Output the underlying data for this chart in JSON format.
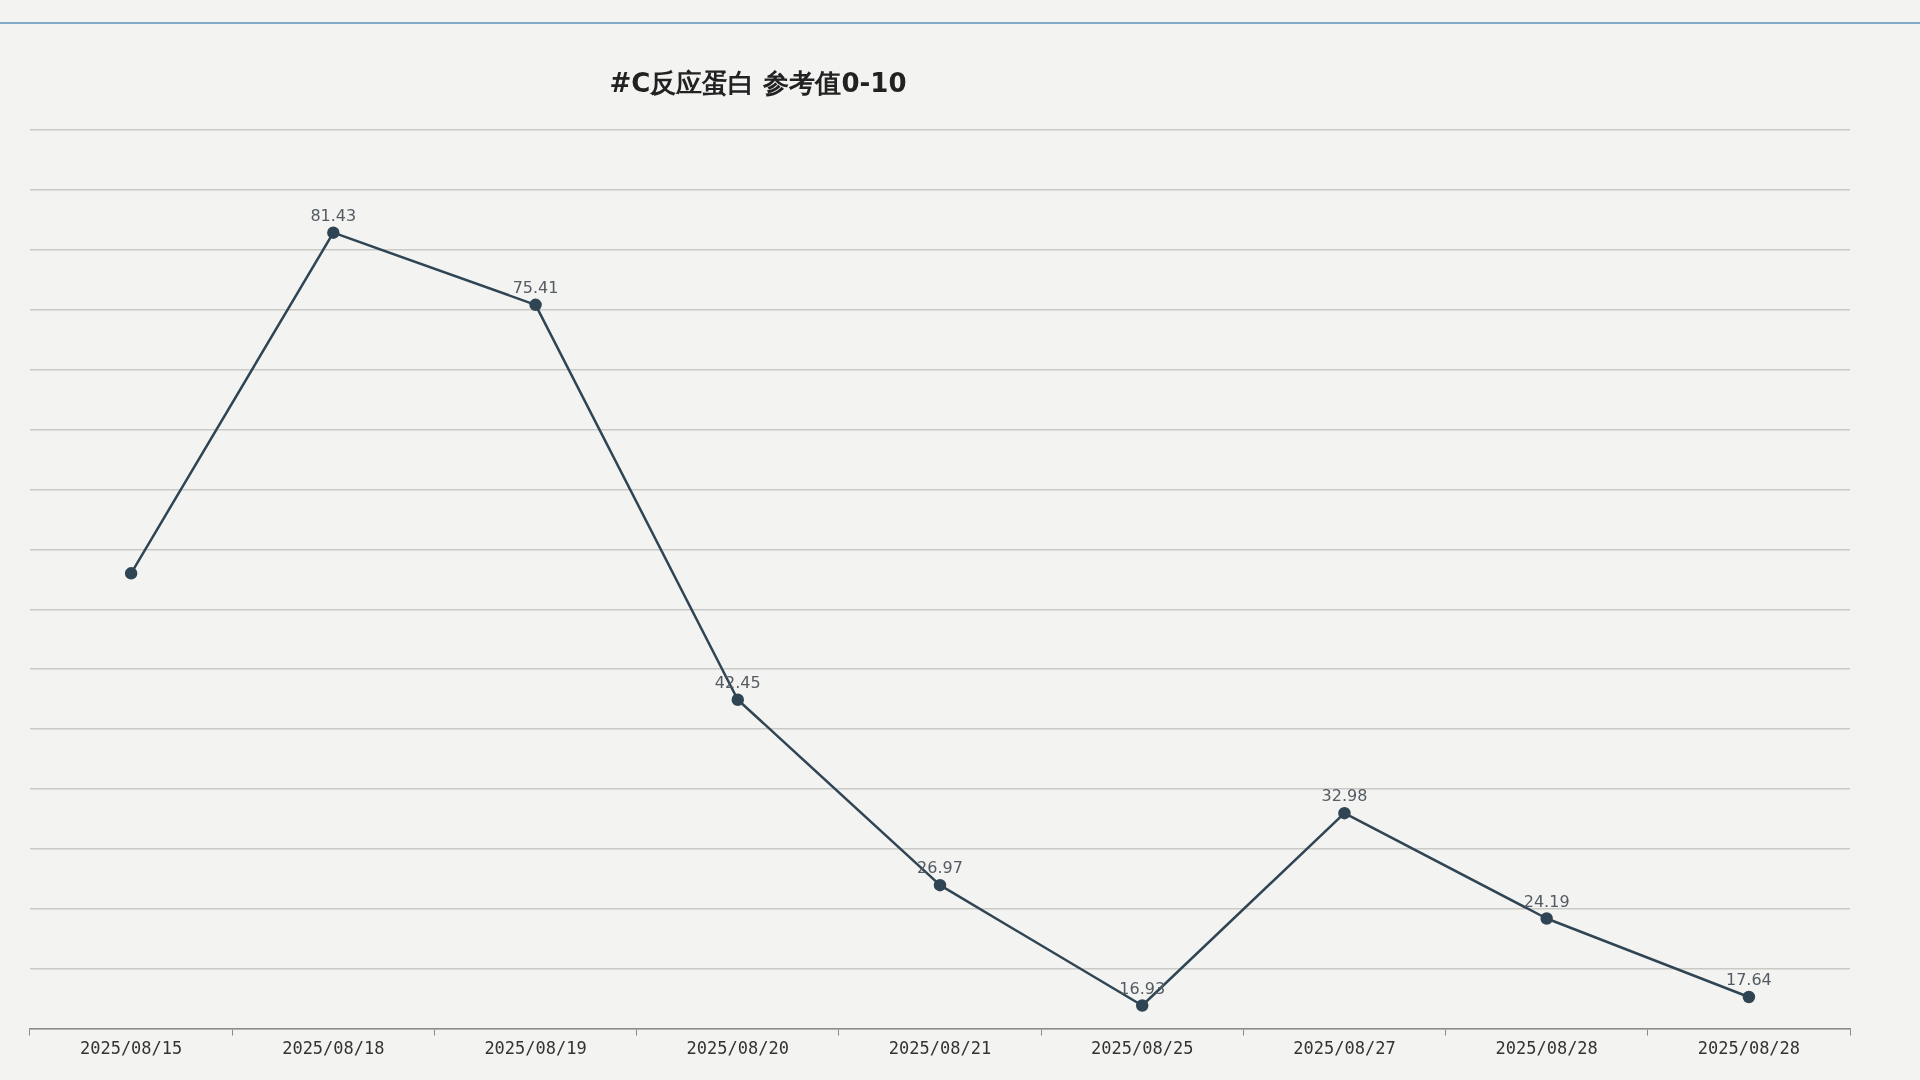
{
  "chart_data": {
    "type": "line",
    "title": "#C反应蛋白 参考值0-10",
    "categories": [
      "2025/08/15",
      "2025/08/18",
      "2025/08/19",
      "2025/08/20",
      "2025/08/21",
      "2025/08/25",
      "2025/08/27",
      "2025/08/28",
      "2025/08/28"
    ],
    "values": [
      53,
      81.43,
      75.41,
      42.45,
      26.97,
      16.93,
      32.98,
      24.19,
      17.64
    ],
    "value_labels": [
      null,
      "81.43",
      "75.41",
      "42.45",
      "26.97",
      "16.93",
      "32.98",
      "24.19",
      "17.64"
    ],
    "color": "#2f4554",
    "ylim": [
      15,
      90
    ],
    "yticks": [
      {
        "value": 15,
        "label": null
      },
      {
        "value": 20,
        "label": null
      },
      {
        "value": 25,
        "label": null
      },
      {
        "value": 30,
        "label": null
      },
      {
        "value": 35,
        "label": null
      },
      {
        "value": 40,
        "label": null
      },
      {
        "value": 45,
        "label": null
      },
      {
        "value": 50,
        "label": null
      },
      {
        "value": 55,
        "label": null
      },
      {
        "value": 60,
        "label": null
      },
      {
        "value": 65,
        "label": null
      },
      {
        "value": 70,
        "label": null
      },
      {
        "value": 75,
        "label": null
      },
      {
        "value": 80,
        "label": null
      },
      {
        "value": 85,
        "label": null
      },
      {
        "value": 90,
        "label": null
      }
    ],
    "grid": "y",
    "tick_labels": "x",
    "marker": "circle",
    "line_style": "solid"
  }
}
